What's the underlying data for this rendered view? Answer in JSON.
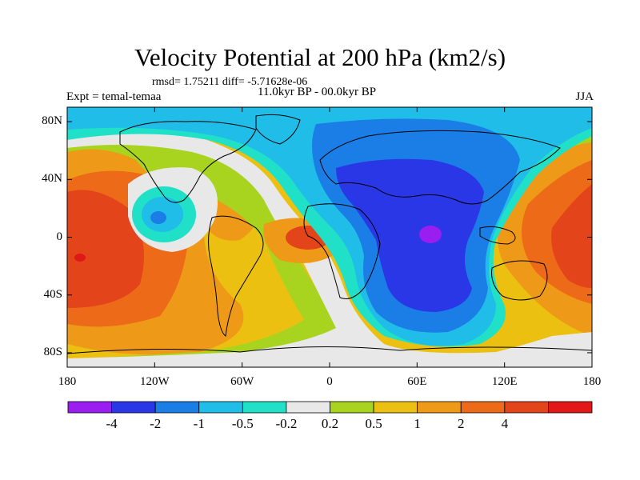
{
  "title": "Velocity Potential at 200 hPa (km2/s)",
  "stats": "rmsd= 1.75211 diff= -5.71628e-06",
  "experiment": "Expt = temal-temaa",
  "period": "11.0kyr BP - 00.0kyr BP",
  "season": "JJA",
  "colors": {
    "purple": "#9a1ef0",
    "dark_blue": "#2a37e6",
    "blue": "#1a7ee6",
    "sky": "#20bde8",
    "teal": "#20e0c8",
    "neutral": "#e8e8e8",
    "yellow_green": "#a8d420",
    "gold": "#ecc010",
    "orange": "#ee9a18",
    "dark_orange": "#ec6a18",
    "red_orange": "#e4441a",
    "red": "#e21818"
  },
  "chart_data": {
    "type": "heatmap",
    "projection": "cylindrical equidistant",
    "variable": "Velocity Potential at 200 hPa",
    "units": "km2/s",
    "xlim": [
      -180,
      180
    ],
    "ylim": [
      -90,
      90
    ],
    "x_ticks": [
      {
        "value": -180,
        "label": "180"
      },
      {
        "value": -120,
        "label": "120W"
      },
      {
        "value": -60,
        "label": "60W"
      },
      {
        "value": 0,
        "label": "0"
      },
      {
        "value": 60,
        "label": "60E"
      },
      {
        "value": 120,
        "label": "120E"
      },
      {
        "value": 180,
        "label": "180"
      }
    ],
    "y_ticks": [
      {
        "value": 80,
        "label": "80N"
      },
      {
        "value": 40,
        "label": "40N"
      },
      {
        "value": 0,
        "label": "0"
      },
      {
        "value": -40,
        "label": "40S"
      },
      {
        "value": -80,
        "label": "80S"
      }
    ],
    "colorbar": {
      "colors": [
        "#9a1ef0",
        "#2a37e6",
        "#1a7ee6",
        "#20bde8",
        "#20e0c8",
        "#e8e8e8",
        "#a8d420",
        "#ecc010",
        "#ee9a18",
        "#ec6a18",
        "#e4441a",
        "#e21818"
      ],
      "boundaries": [
        -4,
        -2,
        -1,
        -0.5,
        -0.2,
        0.2,
        0.5,
        1,
        2,
        4
      ],
      "labels": [
        "-4",
        "-2",
        "-1",
        "-0.5",
        "-0.2",
        "0.2",
        "0.5",
        "1",
        "2",
        "4"
      ]
    },
    "features": [
      {
        "name": "velocity potential minimum",
        "lon": 75,
        "lat": 0,
        "band": "< -4"
      },
      {
        "name": "broad negative center",
        "lon": 60,
        "lat": 15,
        "band": "-4 to -2"
      },
      {
        "name": "positive center",
        "lon": -170,
        "lat": -10,
        "band": "> 4"
      },
      {
        "name": "positive lobe",
        "lon": -15,
        "lat": 0,
        "band": "2 to 4"
      },
      {
        "name": "positive lobe",
        "lon": 165,
        "lat": 20,
        "band": "2 to 4"
      },
      {
        "name": "negative lobe",
        "lon": -120,
        "lat": 10,
        "band": "-2 to -1"
      }
    ]
  }
}
